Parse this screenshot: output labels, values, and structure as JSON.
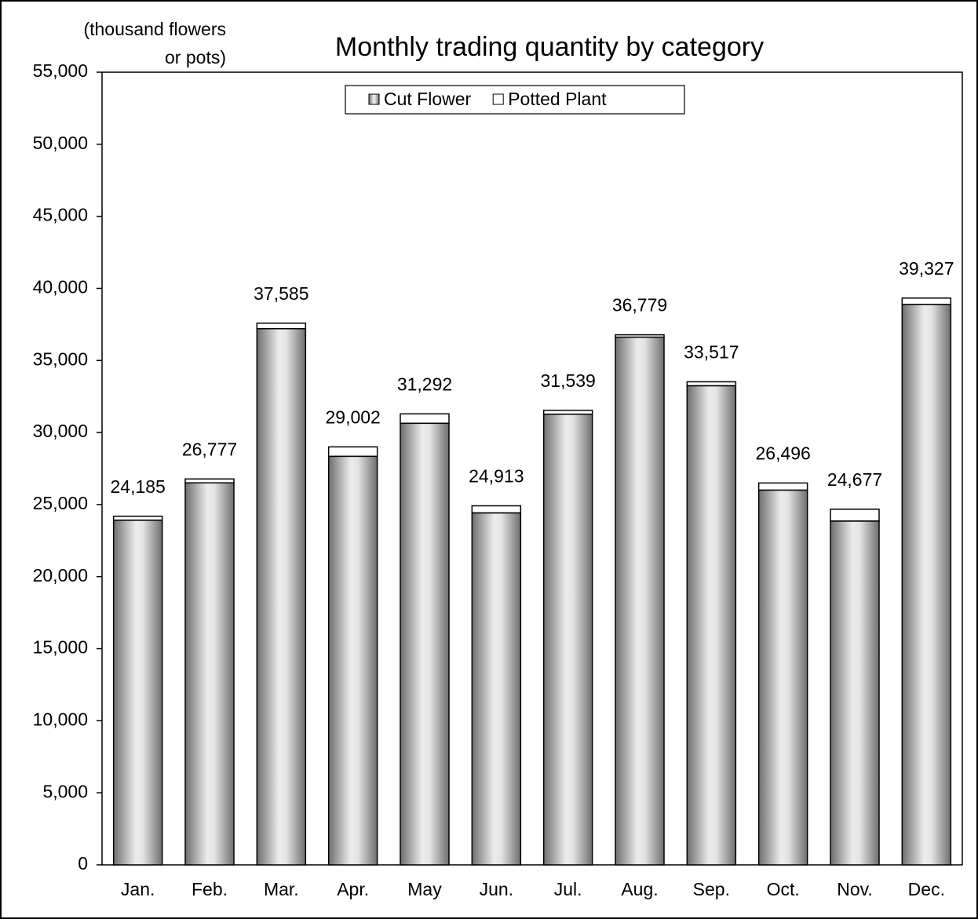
{
  "chart_data": {
    "type": "stacked_bar",
    "title": "Monthly trading quantity by category",
    "y_label": [
      "(thousand flowers",
      "or pots)"
    ],
    "categories": [
      "Jan.",
      "Feb.",
      "Mar.",
      "Apr.",
      "May",
      "Jun.",
      "Jul.",
      "Aug.",
      "Sep.",
      "Oct.",
      "Nov.",
      "Dec."
    ],
    "series": [
      {
        "name": "Cut Flower",
        "color": "#bdbdbd",
        "values": [
          23915,
          26507,
          37205,
          28352,
          30642,
          24423,
          31269,
          36619,
          33247,
          26006,
          23857,
          38887
        ]
      },
      {
        "name": "Potted Plant",
        "color": "#ffffff",
        "values": [
          270,
          270,
          380,
          650,
          650,
          490,
          270,
          160,
          270,
          490,
          820,
          440
        ]
      }
    ],
    "totals": [
      24185,
      26777,
      37585,
      29002,
      31292,
      24913,
      31539,
      36779,
      33517,
      26496,
      24677,
      39327
    ],
    "total_labels": [
      "24,185",
      "26,777",
      "37,585",
      "29,002",
      "31,292",
      "24,913",
      "31,539",
      "36,779",
      "33,517",
      "26,496",
      "24,677",
      "39,327"
    ],
    "ylim": [
      0,
      55000
    ],
    "yticks": [
      0,
      {
        "value": 5000,
        "label": "5,000"
      },
      {
        "value": 10000,
        "label": "10,000"
      },
      {
        "value": 15000,
        "label": "15,000"
      },
      {
        "value": 20000,
        "label": "20,000"
      },
      {
        "value": 25000,
        "label": "25,000"
      },
      {
        "value": 30000,
        "label": "30,000"
      },
      {
        "value": 35000,
        "label": "35,000"
      },
      {
        "value": 40000,
        "label": "40,000"
      },
      {
        "value": 45000,
        "label": "45,000"
      },
      {
        "value": 50000,
        "label": "50,000"
      },
      {
        "value": 55000,
        "label": "55,000"
      }
    ],
    "legend": "top"
  }
}
